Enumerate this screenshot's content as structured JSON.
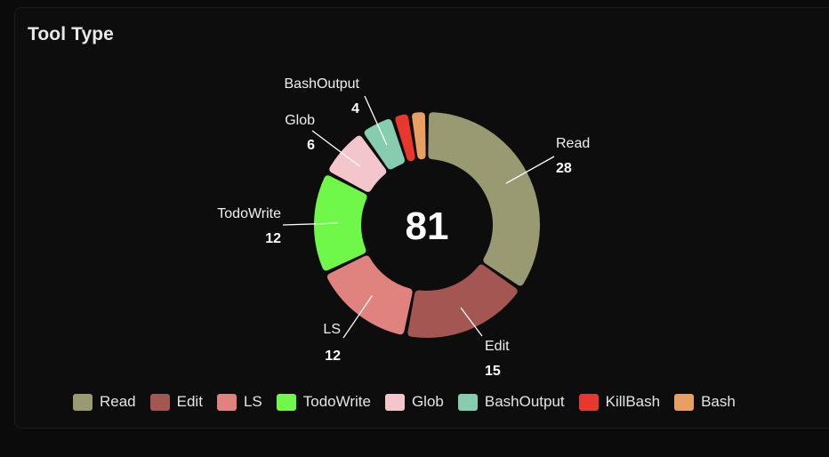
{
  "panel": {
    "title": "Tool Type"
  },
  "chart_data": {
    "type": "pie",
    "variant": "donut",
    "title": "Tool Type",
    "center_label": "81",
    "total": 81,
    "slices": [
      {
        "name": "Read",
        "value": 28,
        "color": "#9a9a72"
      },
      {
        "name": "Edit",
        "value": 15,
        "color": "#a45652"
      },
      {
        "name": "LS",
        "value": 12,
        "color": "#e0837f"
      },
      {
        "name": "TodoWrite",
        "value": 12,
        "color": "#6ff84a"
      },
      {
        "name": "Glob",
        "value": 6,
        "color": "#f3c6cc"
      },
      {
        "name": "BashOutput",
        "value": 4,
        "color": "#86ccae"
      },
      {
        "name": "KillBash",
        "value": 2,
        "color": "#e8382e"
      },
      {
        "name": "Bash",
        "value": 2,
        "color": "#e8a062"
      }
    ],
    "callouts": [
      "Read",
      "Edit",
      "LS",
      "TodoWrite",
      "Glob",
      "BashOutput"
    ],
    "legend_position": "bottom"
  }
}
